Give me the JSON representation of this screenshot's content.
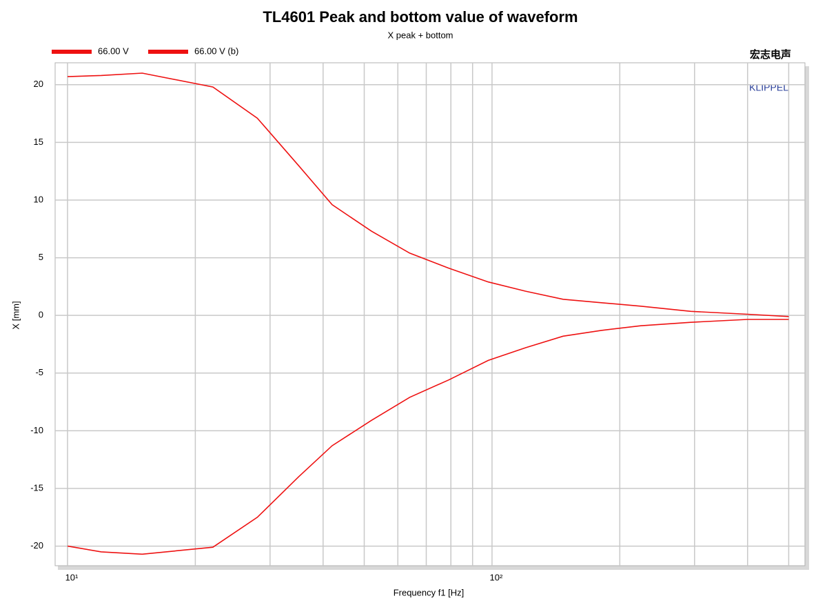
{
  "chart_data": {
    "type": "line",
    "title": "TL4601 Peak and bottom value of waveform",
    "subtitle": "X  peak + bottom",
    "x_label": "Frequency f1  [Hz]",
    "y_label": "X  [mm]",
    "brand": "宏志电声",
    "annotation": "KLIPPEL",
    "x_log": true,
    "grid": true,
    "legend_position": "top-left",
    "xlim": [
      9.35,
      546
    ],
    "ylim": [
      -21.7,
      21.9
    ],
    "xticks": [
      {
        "value": 10,
        "label": "10¹"
      },
      {
        "value": 100,
        "label": "10²"
      }
    ],
    "xminor": [
      20,
      30,
      40,
      50,
      60,
      70,
      80,
      90,
      200,
      300,
      400,
      500
    ],
    "yticks": [
      -20,
      -15,
      -10,
      -5,
      0,
      5,
      10,
      15,
      20
    ],
    "x": [
      10,
      12,
      15,
      22,
      28,
      35,
      42,
      52,
      64,
      79,
      98,
      120,
      147,
      181,
      224,
      294,
      400,
      500
    ],
    "series": [
      {
        "name": "66.00 V",
        "color": "#ee1111",
        "values": [
          20.7,
          20.8,
          21.0,
          19.8,
          17.1,
          13.0,
          9.6,
          7.3,
          5.4,
          4.1,
          2.9,
          2.1,
          1.4,
          1.1,
          0.8,
          0.35,
          0.1,
          -0.1
        ]
      },
      {
        "name": "66.00 V (b)",
        "color": "#ee1111",
        "values": [
          -20.0,
          -20.5,
          -20.7,
          -20.1,
          -17.5,
          -14.0,
          -11.3,
          -9.1,
          -7.1,
          -5.6,
          -3.9,
          -2.8,
          -1.8,
          -1.3,
          -0.9,
          -0.6,
          -0.35,
          -0.35
        ]
      }
    ]
  }
}
